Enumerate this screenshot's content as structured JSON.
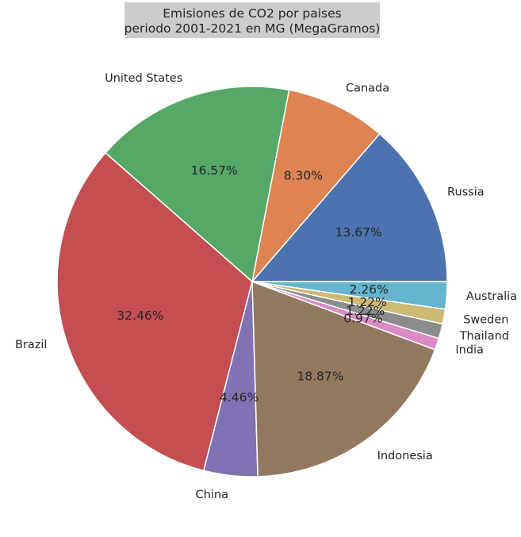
{
  "chart_data": {
    "type": "pie",
    "title_lines": [
      "Emisiones de CO2 por paises",
      "periodo 2001-2021 en MG (MegaGramos)"
    ],
    "slices": [
      {
        "label": "Russia",
        "value": 13.67,
        "pct_label": "13.67%",
        "color": "#4c72b0"
      },
      {
        "label": "Canada",
        "value": 8.3,
        "pct_label": "8.30%",
        "color": "#dd8452"
      },
      {
        "label": "United States",
        "value": 16.57,
        "pct_label": "16.57%",
        "color": "#55a868"
      },
      {
        "label": "Brazil",
        "value": 32.46,
        "pct_label": "32.46%",
        "color": "#c44e52"
      },
      {
        "label": "China",
        "value": 4.46,
        "pct_label": "4.46%",
        "color": "#8172b3"
      },
      {
        "label": "Indonesia",
        "value": 18.87,
        "pct_label": "18.87%",
        "color": "#937860"
      },
      {
        "label": "India",
        "value": 0.97,
        "pct_label": "0.97%",
        "color": "#da8bc3"
      },
      {
        "label": "Thailand",
        "value": 1.22,
        "pct_label": "1.22%",
        "color": "#8c8c8c"
      },
      {
        "label": "Sweden",
        "value": 1.22,
        "pct_label": "1.22%",
        "color": "#ccb974"
      },
      {
        "label": "Australia",
        "value": 2.26,
        "pct_label": "2.26%",
        "color": "#64b5cd"
      }
    ],
    "start_angle_deg": 0,
    "direction": "counterclockwise"
  }
}
